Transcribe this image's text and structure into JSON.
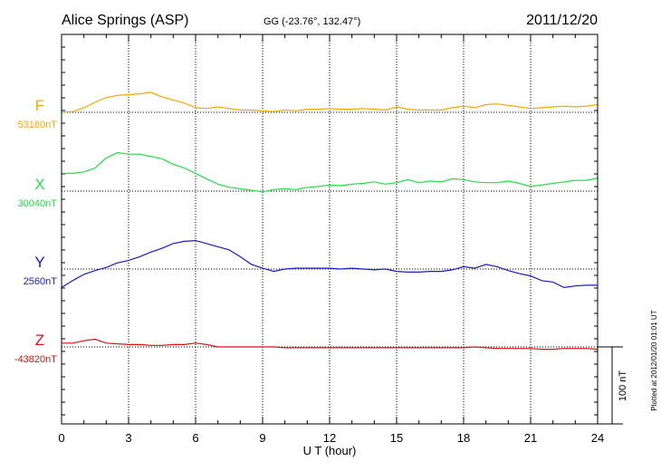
{
  "header": {
    "station": "Alice Springs (ASP)",
    "coords": "GG (-23.76°, 132.47°)",
    "date": "2011/12/20"
  },
  "plotted_note": "Plotted at 2012/01/20 01:01 UT",
  "scale_bar_label": "100 nT",
  "chart_data": {
    "type": "line",
    "xlabel": "U T (hour)",
    "xlim": [
      0,
      24
    ],
    "xticks": [
      "0",
      "3",
      "6",
      "9",
      "12",
      "15",
      "18",
      "21",
      "24"
    ],
    "scale_bar_nT": 100,
    "grid": true,
    "series": [
      {
        "name": "F",
        "baseline_label": "53180nT",
        "color": "#f5a800",
        "points": [
          [
            0,
            53180
          ],
          [
            0.5,
            53181
          ],
          [
            1,
            53186
          ],
          [
            1.5,
            53193
          ],
          [
            2,
            53199
          ],
          [
            2.5,
            53202
          ],
          [
            3,
            53203
          ],
          [
            3.5,
            53204
          ],
          [
            4,
            53206
          ],
          [
            4.5,
            53200
          ],
          [
            5,
            53196
          ],
          [
            5.5,
            53192
          ],
          [
            6,
            53186
          ],
          [
            6.5,
            53185
          ],
          [
            7,
            53187
          ],
          [
            7.5,
            53185
          ],
          [
            8,
            53183
          ],
          [
            8.5,
            53183
          ],
          [
            9,
            53182
          ],
          [
            9.5,
            53181
          ],
          [
            10,
            53183
          ],
          [
            10.5,
            53182
          ],
          [
            11,
            53184
          ],
          [
            11.5,
            53184
          ],
          [
            12,
            53185
          ],
          [
            12.5,
            53184
          ],
          [
            13,
            53184
          ],
          [
            13.5,
            53185
          ],
          [
            14,
            53184
          ],
          [
            14.5,
            53183
          ],
          [
            15,
            53187
          ],
          [
            15.5,
            53184
          ],
          [
            16,
            53183
          ],
          [
            16.5,
            53183
          ],
          [
            17,
            53183
          ],
          [
            17.5,
            53186
          ],
          [
            18,
            53188
          ],
          [
            18.5,
            53186
          ],
          [
            19,
            53190
          ],
          [
            19.5,
            53191
          ],
          [
            20,
            53189
          ],
          [
            20.5,
            53187
          ],
          [
            21,
            53185
          ],
          [
            21.5,
            53186
          ],
          [
            22,
            53187
          ],
          [
            22.5,
            53188
          ],
          [
            23,
            53187
          ],
          [
            23.5,
            53188
          ],
          [
            24,
            53190
          ]
        ]
      },
      {
        "name": "X",
        "baseline_label": "30040nT",
        "color": "#22dd44",
        "points": [
          [
            0,
            30063
          ],
          [
            0.5,
            30063
          ],
          [
            1,
            30065
          ],
          [
            1.5,
            30070
          ],
          [
            2,
            30083
          ],
          [
            2.5,
            30090
          ],
          [
            3,
            30088
          ],
          [
            3.5,
            30088
          ],
          [
            4,
            30085
          ],
          [
            4.5,
            30082
          ],
          [
            5,
            30075
          ],
          [
            5.5,
            30070
          ],
          [
            6,
            30063
          ],
          [
            6.5,
            30056
          ],
          [
            7,
            30049
          ],
          [
            7.5,
            30045
          ],
          [
            8,
            30043
          ],
          [
            8.5,
            30041
          ],
          [
            9,
            30039
          ],
          [
            9.5,
            30042
          ],
          [
            10,
            30043
          ],
          [
            10.5,
            30042
          ],
          [
            11,
            30045
          ],
          [
            11.5,
            30046
          ],
          [
            12,
            30048
          ],
          [
            12.5,
            30047
          ],
          [
            13,
            30049
          ],
          [
            13.5,
            30050
          ],
          [
            14,
            30052
          ],
          [
            14.5,
            30049
          ],
          [
            15,
            30051
          ],
          [
            15.5,
            30055
          ],
          [
            16,
            30051
          ],
          [
            16.5,
            30053
          ],
          [
            17,
            30052
          ],
          [
            17.5,
            30056
          ],
          [
            18,
            30055
          ],
          [
            18.5,
            30052
          ],
          [
            19,
            30051
          ],
          [
            19.5,
            30051
          ],
          [
            20,
            30053
          ],
          [
            20.5,
            30050
          ],
          [
            21,
            30046
          ],
          [
            21.5,
            30048
          ],
          [
            22,
            30050
          ],
          [
            22.5,
            30052
          ],
          [
            23,
            30054
          ],
          [
            23.5,
            30054
          ],
          [
            24,
            30057
          ]
        ]
      },
      {
        "name": "Y",
        "baseline_label": "2560nT",
        "color": "#1a1acc",
        "points": [
          [
            0,
            2536
          ],
          [
            0.5,
            2545
          ],
          [
            1,
            2553
          ],
          [
            1.5,
            2558
          ],
          [
            2,
            2562
          ],
          [
            2.5,
            2568
          ],
          [
            3,
            2571
          ],
          [
            3.5,
            2576
          ],
          [
            4,
            2582
          ],
          [
            4.5,
            2587
          ],
          [
            5,
            2593
          ],
          [
            5.5,
            2596
          ],
          [
            6,
            2597
          ],
          [
            6.5,
            2593
          ],
          [
            7,
            2589
          ],
          [
            7.5,
            2585
          ],
          [
            8,
            2576
          ],
          [
            8.5,
            2566
          ],
          [
            9,
            2561
          ],
          [
            9.5,
            2557
          ],
          [
            10,
            2560
          ],
          [
            10.5,
            2561
          ],
          [
            11,
            2561
          ],
          [
            11.5,
            2561
          ],
          [
            12,
            2561
          ],
          [
            12.5,
            2560
          ],
          [
            13,
            2561
          ],
          [
            13.5,
            2560
          ],
          [
            14,
            2559
          ],
          [
            14.5,
            2560
          ],
          [
            15,
            2557
          ],
          [
            15.5,
            2556
          ],
          [
            16,
            2556
          ],
          [
            16.5,
            2557
          ],
          [
            17,
            2557
          ],
          [
            17.5,
            2559
          ],
          [
            18,
            2563
          ],
          [
            18.5,
            2561
          ],
          [
            19,
            2566
          ],
          [
            19.5,
            2563
          ],
          [
            20,
            2558
          ],
          [
            20.5,
            2554
          ],
          [
            21,
            2551
          ],
          [
            21.5,
            2545
          ],
          [
            22,
            2543
          ],
          [
            22.5,
            2536
          ],
          [
            23,
            2538
          ],
          [
            23.5,
            2539
          ],
          [
            24,
            2539
          ]
        ]
      },
      {
        "name": "Z",
        "baseline_label": "-43820nT",
        "color": "#dd1111",
        "points": [
          [
            0,
            -43815
          ],
          [
            0.5,
            -43815
          ],
          [
            1,
            -43812
          ],
          [
            1.5,
            -43810
          ],
          [
            2,
            -43815
          ],
          [
            2.5,
            -43816
          ],
          [
            3,
            -43817
          ],
          [
            3.5,
            -43817
          ],
          [
            4,
            -43818
          ],
          [
            4.5,
            -43818
          ],
          [
            5,
            -43817
          ],
          [
            5.5,
            -43817
          ],
          [
            6,
            -43815
          ],
          [
            6.5,
            -43817
          ],
          [
            7,
            -43820
          ],
          [
            7.5,
            -43820
          ],
          [
            8,
            -43820
          ],
          [
            8.5,
            -43820
          ],
          [
            9,
            -43820
          ],
          [
            9.5,
            -43820
          ],
          [
            10,
            -43821
          ],
          [
            10.5,
            -43821
          ],
          [
            11,
            -43821
          ],
          [
            11.5,
            -43821
          ],
          [
            12,
            -43821
          ],
          [
            12.5,
            -43821
          ],
          [
            13,
            -43821
          ],
          [
            13.5,
            -43821
          ],
          [
            14,
            -43821
          ],
          [
            14.5,
            -43821
          ],
          [
            15,
            -43821
          ],
          [
            15.5,
            -43821
          ],
          [
            16,
            -43821
          ],
          [
            16.5,
            -43821
          ],
          [
            17,
            -43821
          ],
          [
            17.5,
            -43821
          ],
          [
            18,
            -43821
          ],
          [
            18.5,
            -43820
          ],
          [
            19,
            -43821
          ],
          [
            19.5,
            -43822
          ],
          [
            20,
            -43822
          ],
          [
            20.5,
            -43822
          ],
          [
            21,
            -43822
          ],
          [
            21.5,
            -43823
          ],
          [
            22,
            -43823
          ],
          [
            22.5,
            -43822
          ],
          [
            23,
            -43822
          ],
          [
            23.5,
            -43822
          ],
          [
            24,
            -43823
          ]
        ]
      }
    ]
  }
}
